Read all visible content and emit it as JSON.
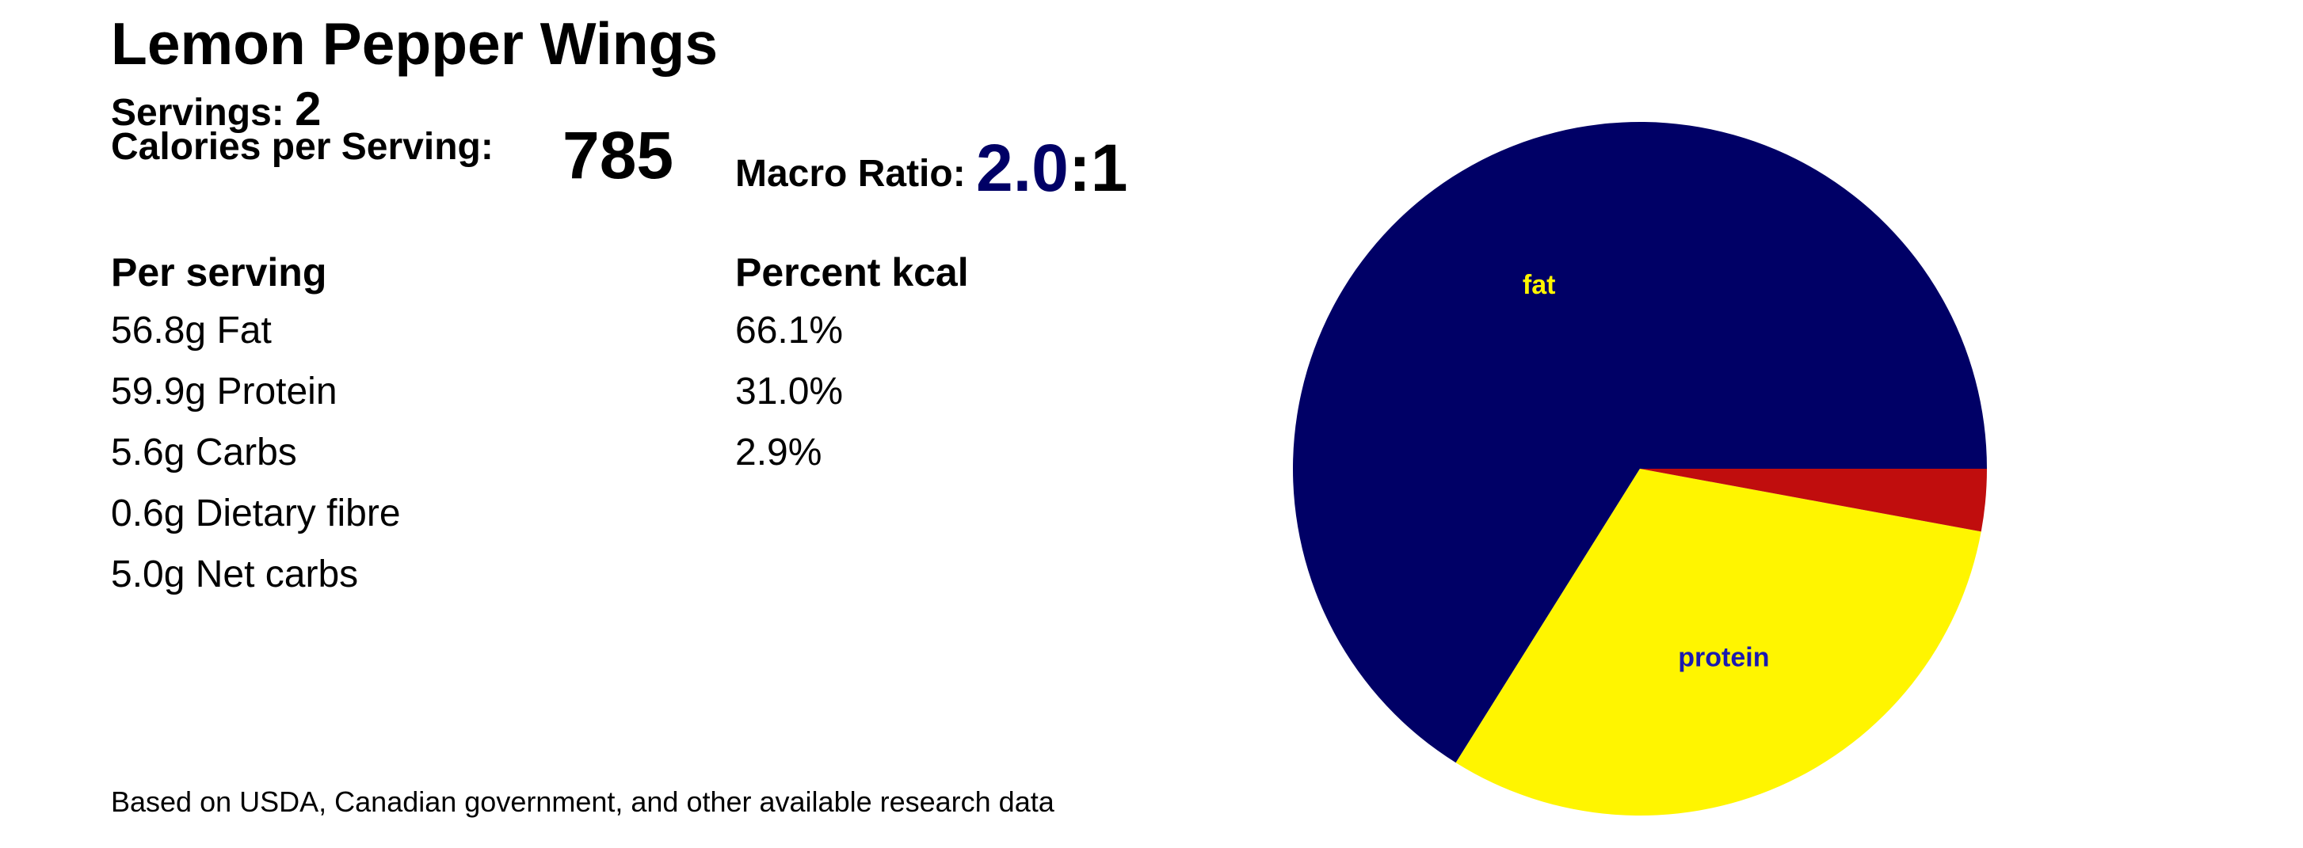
{
  "recipe": {
    "title": "Lemon Pepper Wings",
    "servings_label": "Servings:",
    "servings_value": "2",
    "calories_label": "Calories per Serving:",
    "calories_value": "785",
    "ratio_label": "Macro Ratio:",
    "ratio_value": "2.0",
    "ratio_suffix": ":1"
  },
  "table": {
    "per_serving_header": "Per serving",
    "percent_header": "Percent kcal",
    "per_serving_rows": [
      "56.8g Fat",
      "59.9g Protein",
      "5.6g Carbs",
      "0.6g Dietary fibre",
      "5.0g Net carbs"
    ],
    "percent_rows": [
      "66.1%",
      "31.0%",
      "2.9%"
    ]
  },
  "footer": "Based on USDA, Canadian government, and other available research data",
  "colors": {
    "fat": "#000066",
    "protein": "#FFF500",
    "carbs": "#C00D0D",
    "ratio_accent": "#000066"
  },
  "chart_data": {
    "type": "pie",
    "title": "",
    "slices": [
      {
        "name": "fat",
        "label": "fat",
        "value": 66.1,
        "color": "#000066",
        "label_color": "#FFF500"
      },
      {
        "name": "protein",
        "label": "protein",
        "value": 31.0,
        "color": "#FFF500",
        "label_color": "#1A1AB0"
      },
      {
        "name": "carbs",
        "label": "",
        "value": 2.9,
        "color": "#C00D0D",
        "label_color": "#FFFFFF"
      }
    ],
    "start": "3 o'clock, counter-clockwise",
    "legend": "none"
  }
}
